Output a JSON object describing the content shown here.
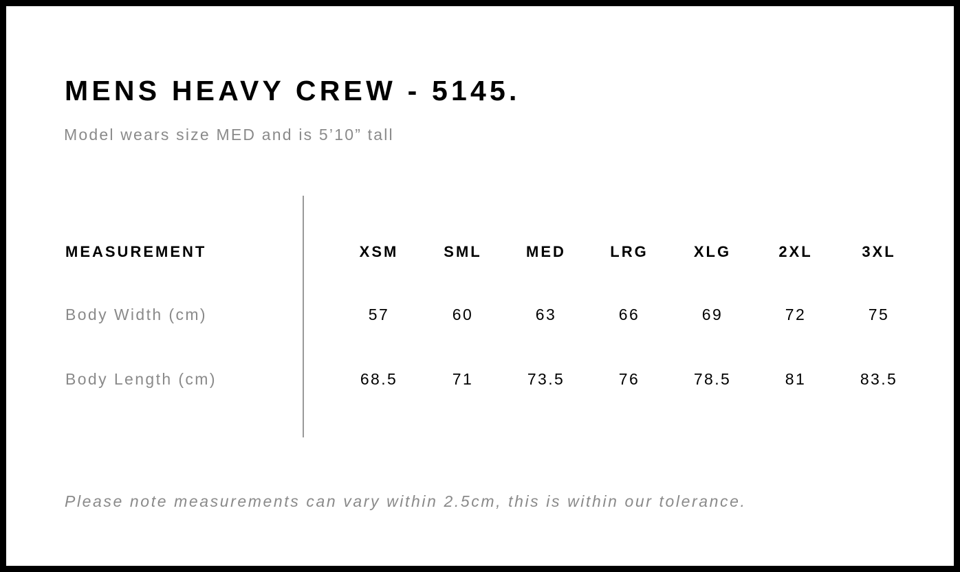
{
  "title": "MENS HEAVY CREW - 5145.",
  "subtitle": "Model wears size MED and is 5’10” tall",
  "table": {
    "header_label": "MEASUREMENT",
    "sizes": [
      "XSM",
      "SML",
      "MED",
      "LRG",
      "XLG",
      "2XL",
      "3XL"
    ],
    "rows": [
      {
        "label": "Body Width (cm)",
        "values": [
          "57",
          "60",
          "63",
          "66",
          "69",
          "72",
          "75"
        ]
      },
      {
        "label": "Body Length (cm)",
        "values": [
          "68.5",
          "71",
          "73.5",
          "76",
          "78.5",
          "81",
          "83.5"
        ]
      }
    ]
  },
  "note": "Please note measurements can vary within 2.5cm, this is within our tolerance."
}
